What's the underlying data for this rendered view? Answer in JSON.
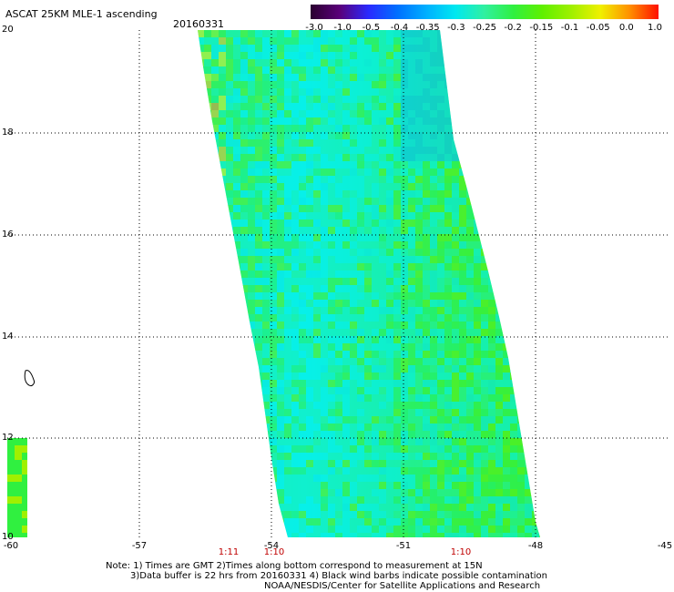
{
  "title": "ASCAT 25KM MLE-1 ascending",
  "date": "20160331",
  "colorbar": {
    "tick_labels": [
      "-3.0",
      "-1.0",
      "-0.5",
      "-0.4",
      "-0.35",
      "-0.3",
      "-0.25",
      "-0.2",
      "-0.15",
      "-0.1",
      "-0.05",
      "0.0",
      "1.0"
    ],
    "colors": [
      "#2a0030",
      "#5a007a",
      "#2a2aff",
      "#0070ff",
      "#00b0ff",
      "#00e8f0",
      "#30f0a0",
      "#30f040",
      "#60f000",
      "#a0f000",
      "#f0f000",
      "#ff9000",
      "#ff1000"
    ]
  },
  "map": {
    "lon_labels": [
      "-60",
      "-57",
      "-54",
      "-51",
      "-48",
      "-45"
    ],
    "lat_labels": [
      "20",
      "18",
      "16",
      "14",
      "12",
      "10"
    ],
    "lon_range": [
      -60,
      -45
    ],
    "lat_range": [
      10,
      20
    ],
    "gridlines": "dotted",
    "time_labels": [
      "1:11",
      "1:10",
      "1:10"
    ],
    "time_label_color": "#c00000"
  },
  "notes": [
    "Note: 1) Times are GMT 2)Times along bottom correspond to measurement at 15N",
    "3)Data buffer is 22 hrs from 20160331 4) Black wind barbs indicate possible contamination",
    "NOAA/NESDIS/Center for Satellite Applications and Research"
  ]
}
